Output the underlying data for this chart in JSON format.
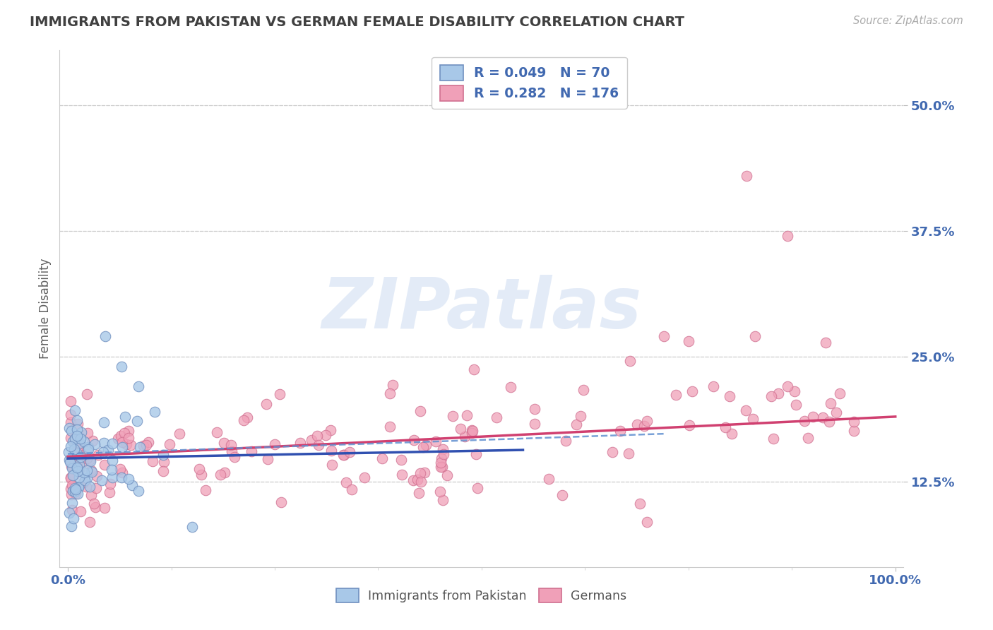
{
  "title": "IMMIGRANTS FROM PAKISTAN VS GERMAN FEMALE DISABILITY CORRELATION CHART",
  "source": "Source: ZipAtlas.com",
  "ylabel": "Female Disability",
  "legend_blue_label": "Immigrants from Pakistan",
  "legend_pink_label": "Germans",
  "r_blue": 0.049,
  "n_blue": 70,
  "r_pink": 0.282,
  "n_pink": 176,
  "xlim": [
    -0.01,
    1.01
  ],
  "ylim": [
    0.04,
    0.555
  ],
  "yticks": [
    0.125,
    0.25,
    0.375,
    0.5
  ],
  "ytick_labels": [
    "12.5%",
    "25.0%",
    "37.5%",
    "50.0%"
  ],
  "xticks": [
    0.0,
    1.0
  ],
  "xtick_labels": [
    "0.0%",
    "100.0%"
  ],
  "blue_fill": "#A8C8E8",
  "blue_edge": "#7090C0",
  "pink_fill": "#F0A0B8",
  "pink_edge": "#D07090",
  "blue_line_color": "#3050B0",
  "blue_dash_color": "#6090D0",
  "pink_line_color": "#D04070",
  "grid_color": "#CCCCCC",
  "title_color": "#404040",
  "axis_label_color": "#606060",
  "tick_label_color": "#4169B0",
  "watermark_text": "ZIPatlas",
  "watermark_color": "#C8D8F0",
  "background_color": "#FFFFFF"
}
